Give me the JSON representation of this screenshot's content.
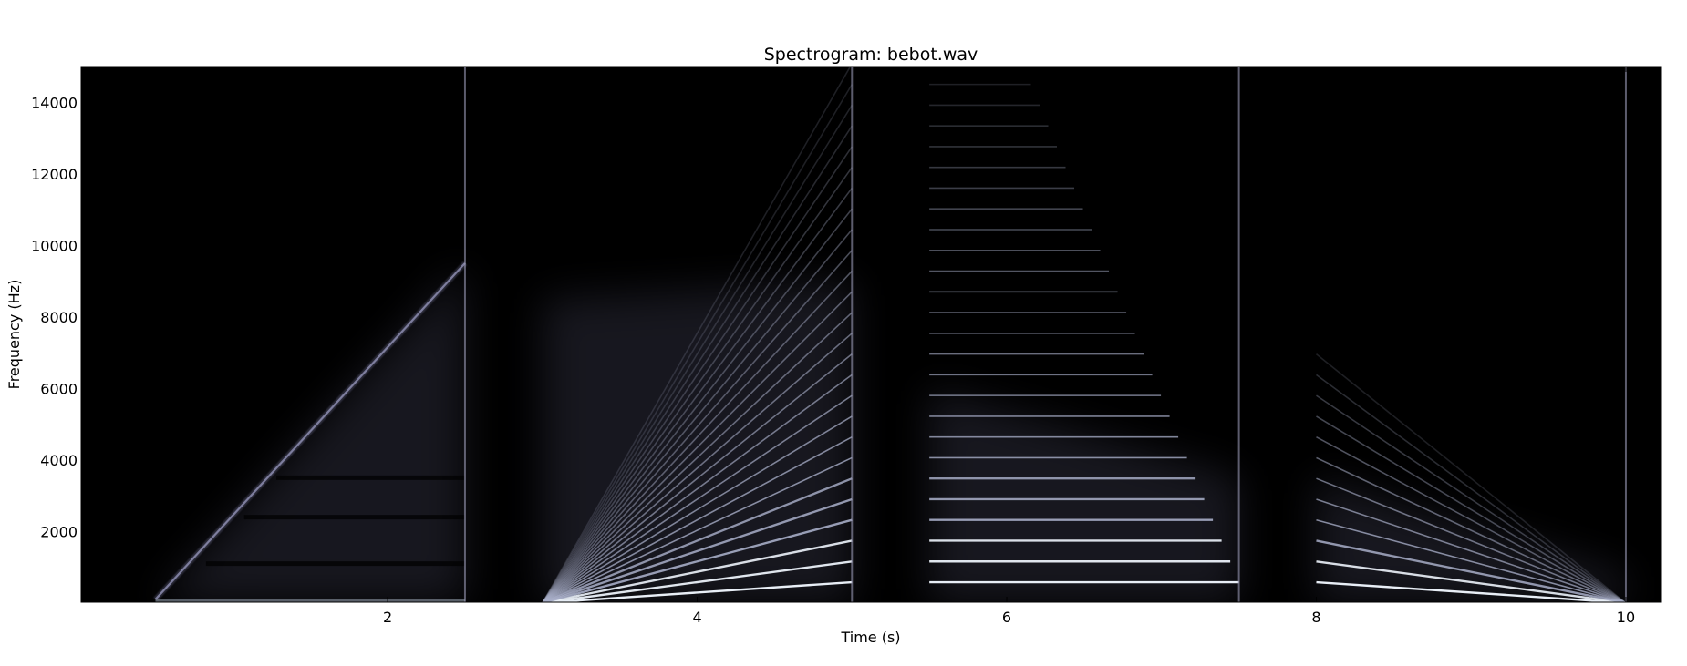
{
  "chart_data": {
    "type": "heatmap",
    "title": "Spectrogram: bebot.wav",
    "xlabel": "Time (s)",
    "ylabel": "Frequency (Hz)",
    "xlim": [
      0.02,
      10.23
    ],
    "ylim": [
      20,
      15000
    ],
    "xticks": [
      2,
      4,
      6,
      8,
      10
    ],
    "yticks": [
      2000,
      4000,
      6000,
      8000,
      10000,
      12000,
      14000
    ],
    "grid": false,
    "colormap": "bone",
    "colors": {
      "background": "#000000",
      "glow": "#6a6a8c",
      "line": "#e8eef6"
    },
    "segments": [
      {
        "name": "sweep-up",
        "t_start": 0.5,
        "t_end": 2.5,
        "f_start": 100,
        "f_end": 9500,
        "harmonics": 1,
        "note": "single rising linear chirp with horizontal dark bands near 1100, 2400, 3500 Hz"
      },
      {
        "name": "harmonic-fan-up",
        "t_start": 3.0,
        "t_end": 5.0,
        "f0_start": 0,
        "f0_end": 580,
        "harmonics": 26
      },
      {
        "name": "harmonic-steady",
        "t_start": 5.5,
        "t_end": 7.5,
        "f0": 580,
        "harmonics": 26
      },
      {
        "name": "harmonic-fan-down",
        "t_start": 8.0,
        "t_end": 10.0,
        "f0_start": 580,
        "f0_end": 0,
        "harmonics": 12
      }
    ],
    "onset_marks": [
      2.5,
      5.0,
      7.5,
      10.0
    ]
  }
}
